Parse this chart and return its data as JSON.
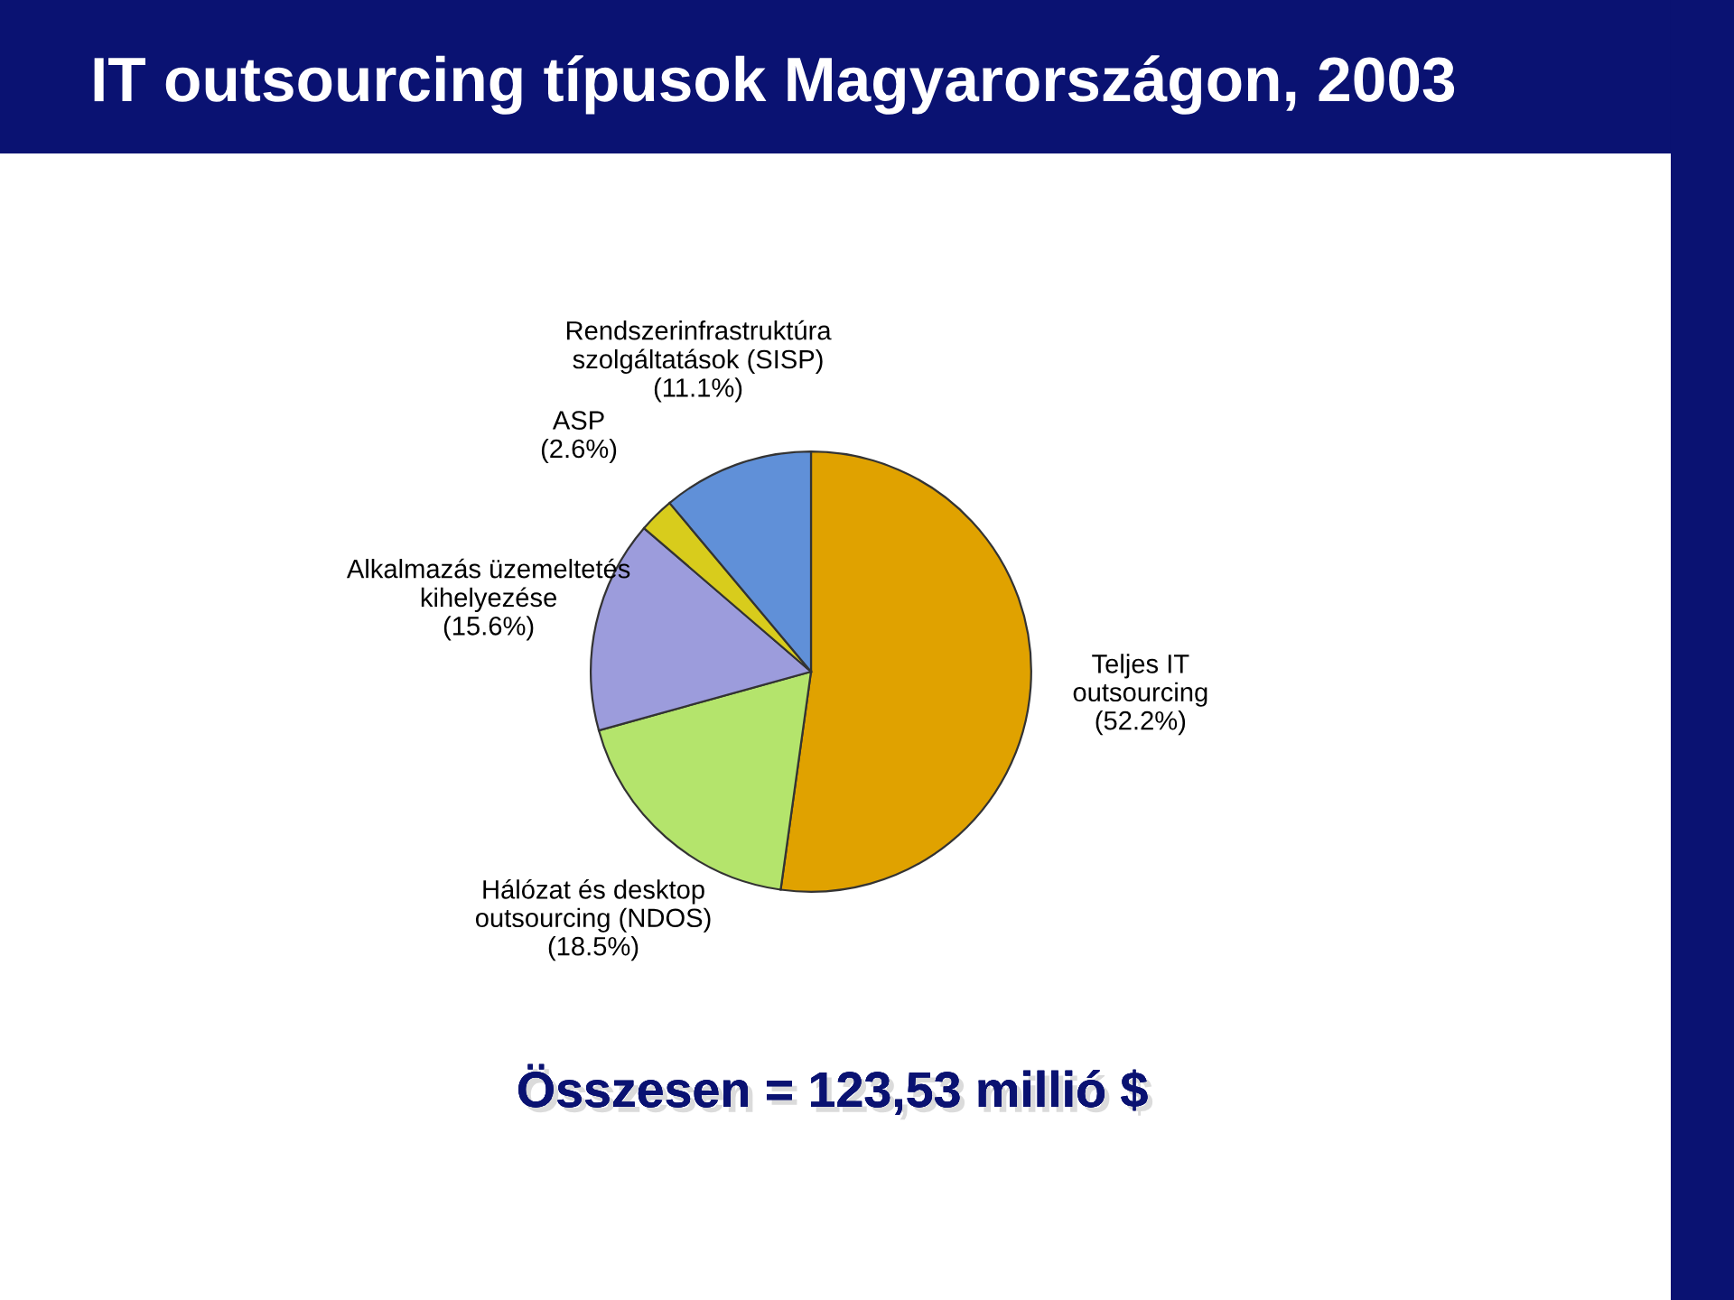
{
  "chart_data": {
    "type": "pie",
    "title": "IT outsourcing típusok Magyarországon, 2003",
    "categories": [
      "Teljes IT\noutsourcing",
      "Hálózat és desktop\noutsourcing (NDOS)",
      "Alkalmazás üzemeltetés\nkihelyezése",
      "ASP",
      "Rendszerinfrastruktúra\nszolgáltatások (SISP)"
    ],
    "values": [
      52.2,
      18.5,
      15.6,
      2.6,
      11.1
    ],
    "value_labels": [
      "(52.2%)",
      "(18.5%)",
      "(15.6%)",
      "(2.6%)",
      "(11.1%)"
    ],
    "colors": [
      "#e0a200",
      "#b4e46c",
      "#9c9cdc",
      "#d8cc1c",
      "#6090d8"
    ],
    "annotations": [
      "Összesen = 123,53 millió $"
    ]
  }
}
